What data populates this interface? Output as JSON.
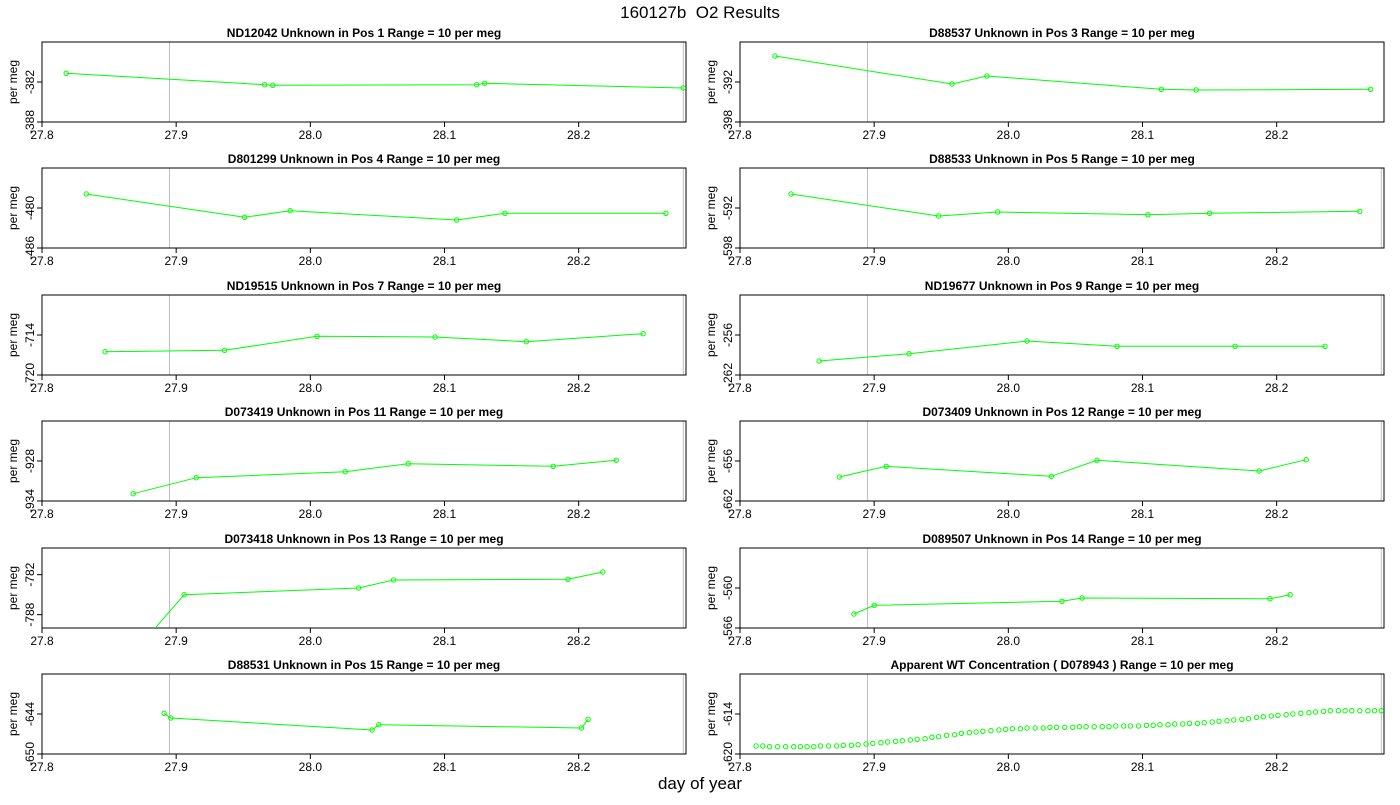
{
  "figure": {
    "title": "160127b  O2 Results",
    "xlabel": "day of year"
  },
  "colors": {
    "series": "#00ff00",
    "axis": "#000000",
    "refline": "#bebebe"
  },
  "chart_data": [
    {
      "type": "line",
      "title": "ND12042    Unknown in Pos 1         Range = 10 per meg",
      "ylabel": "per meg",
      "xlim": [
        27.8,
        28.28
      ],
      "xticks": [
        27.8,
        27.9,
        28.0,
        28.1,
        28.2
      ],
      "ylim": [
        -388,
        -376
      ],
      "yticks": [
        -382,
        -388
      ],
      "vlines": [
        27.895,
        28.278
      ],
      "x": [
        27.818,
        27.966,
        27.972,
        28.124,
        28.13,
        28.278
      ],
      "y": [
        -380.7,
        -382.4,
        -382.5,
        -382.4,
        -382.2,
        -382.9
      ]
    },
    {
      "type": "line",
      "title": "D88537    Unknown in Pos 3         Range = 10 per meg",
      "ylabel": "per meg",
      "xlim": [
        27.8,
        28.28
      ],
      "xticks": [
        27.8,
        27.9,
        28.0,
        28.1,
        28.2
      ],
      "ylim": [
        -398,
        -386
      ],
      "yticks": [
        -392,
        -398
      ],
      "vlines": [
        27.895
      ],
      "x": [
        27.826,
        27.958,
        27.984,
        28.114,
        28.14,
        28.27
      ],
      "y": [
        -388.1,
        -392.3,
        -391.1,
        -393.1,
        -393.2,
        -393.1
      ]
    },
    {
      "type": "line",
      "title": "D801299    Unknown in Pos 4         Range = 10 per meg",
      "ylabel": "per meg",
      "xlim": [
        27.8,
        28.28
      ],
      "xticks": [
        27.8,
        27.9,
        28.0,
        28.1,
        28.2
      ],
      "ylim": [
        -486,
        -474
      ],
      "yticks": [
        -480,
        -486
      ],
      "vlines": [
        27.895,
        28.278
      ],
      "x": [
        27.833,
        27.951,
        27.985,
        28.109,
        28.145,
        28.265
      ],
      "y": [
        -477.9,
        -481.4,
        -480.4,
        -481.8,
        -480.8,
        -480.8
      ]
    },
    {
      "type": "line",
      "title": "D88533    Unknown in Pos 5         Range = 10 per meg",
      "ylabel": "per meg",
      "xlim": [
        27.8,
        28.28
      ],
      "xticks": [
        27.8,
        27.9,
        28.0,
        28.1,
        28.2
      ],
      "ylim": [
        -598,
        -586
      ],
      "yticks": [
        -592,
        -598
      ],
      "vlines": [
        27.895,
        28.278
      ],
      "x": [
        27.838,
        27.948,
        27.992,
        28.104,
        28.15,
        28.262
      ],
      "y": [
        -589.9,
        -593.2,
        -592.6,
        -593.0,
        -592.8,
        -592.5
      ]
    },
    {
      "type": "line",
      "title": "ND19515    Unknown in Pos 7         Range = 10 per meg",
      "ylabel": "per meg",
      "xlim": [
        27.8,
        28.28
      ],
      "xticks": [
        27.8,
        27.9,
        28.0,
        28.1,
        28.2
      ],
      "ylim": [
        -720,
        -708
      ],
      "yticks": [
        -714,
        -720
      ],
      "vlines": [
        27.895,
        28.278
      ],
      "x": [
        27.847,
        27.936,
        28.005,
        28.093,
        28.161,
        28.248
      ],
      "y": [
        -716.5,
        -716.3,
        -714.2,
        -714.3,
        -715.0,
        -713.8
      ]
    },
    {
      "type": "line",
      "title": "ND19677    Unknown in Pos 9         Range = 10 per meg",
      "ylabel": "per meg",
      "xlim": [
        27.8,
        28.28
      ],
      "xticks": [
        27.8,
        27.9,
        28.0,
        28.1,
        28.2
      ],
      "ylim": [
        -262,
        -250
      ],
      "yticks": [
        -256,
        -262
      ],
      "vlines": [
        27.895,
        28.278
      ],
      "x": [
        27.859,
        27.926,
        28.014,
        28.081,
        28.169,
        28.236
      ],
      "y": [
        -259.9,
        -258.8,
        -256.9,
        -257.7,
        -257.7,
        -257.7
      ]
    },
    {
      "type": "line",
      "title": "D073419    Unknown in Pos 11         Range = 10 per meg",
      "ylabel": "per meg",
      "xlim": [
        27.8,
        28.28
      ],
      "xticks": [
        27.8,
        27.9,
        28.0,
        28.1,
        28.2
      ],
      "ylim": [
        -934,
        -922
      ],
      "yticks": [
        -928,
        -934
      ],
      "vlines": [
        27.895,
        28.278
      ],
      "x": [
        27.868,
        27.915,
        28.026,
        28.073,
        28.181,
        28.228
      ],
      "y": [
        -932.9,
        -930.5,
        -929.6,
        -928.4,
        -928.8,
        -927.9
      ]
    },
    {
      "type": "line",
      "title": "D073409    Unknown in Pos 12         Range = 10 per meg",
      "ylabel": "per meg",
      "xlim": [
        27.8,
        28.28
      ],
      "xticks": [
        27.8,
        27.9,
        28.0,
        28.1,
        28.2
      ],
      "ylim": [
        -662,
        -650
      ],
      "yticks": [
        -656,
        -662
      ],
      "vlines": [
        27.895,
        28.278
      ],
      "x": [
        27.874,
        27.909,
        28.032,
        28.066,
        28.187,
        28.222
      ],
      "y": [
        -658.4,
        -656.8,
        -658.3,
        -655.9,
        -657.5,
        -655.8
      ]
    },
    {
      "type": "line",
      "title": "D073418    Unknown in Pos 13         Range = 10 per meg",
      "ylabel": "per meg",
      "xlim": [
        27.8,
        28.28
      ],
      "xticks": [
        27.8,
        27.9,
        28.0,
        28.1,
        28.2
      ],
      "ylim": [
        -790,
        -778
      ],
      "yticks": [
        -782,
        -788
      ],
      "vlines": [
        27.895,
        28.278
      ],
      "x": [
        27.88,
        27.906,
        28.036,
        28.062,
        28.192,
        28.218
      ],
      "y": [
        -791.0,
        -785.0,
        -784.0,
        -782.8,
        -782.7,
        -781.6
      ]
    },
    {
      "type": "line",
      "title": "D089507    Unknown in Pos 14         Range = 10 per meg",
      "ylabel": "per meg",
      "xlim": [
        27.8,
        28.28
      ],
      "xticks": [
        27.8,
        27.9,
        28.0,
        28.1,
        28.2
      ],
      "ylim": [
        -566,
        -554
      ],
      "yticks": [
        -560,
        -566
      ],
      "vlines": [
        27.895,
        28.278
      ],
      "x": [
        27.885,
        27.9,
        28.04,
        28.055,
        28.195,
        28.21
      ],
      "y": [
        -563.9,
        -562.6,
        -562.0,
        -561.5,
        -561.6,
        -561.0
      ]
    },
    {
      "type": "line",
      "title": "D88531    Unknown in Pos 15         Range = 10 per meg",
      "ylabel": "per meg",
      "xlim": [
        27.8,
        28.28
      ],
      "xticks": [
        27.8,
        27.9,
        28.0,
        28.1,
        28.2
      ],
      "ylim": [
        -650,
        -638
      ],
      "yticks": [
        -644,
        -650
      ],
      "vlines": [
        27.895,
        28.278
      ],
      "x": [
        27.891,
        27.896,
        28.046,
        28.051,
        28.202,
        28.207
      ],
      "y": [
        -643.9,
        -644.6,
        -646.4,
        -645.6,
        -646.1,
        -644.8
      ]
    },
    {
      "type": "scatter",
      "title": "Apparent WT Concentration ( D078943 )         Range = 10 per meg",
      "ylabel": "per meg",
      "xlim": [
        27.8,
        28.28
      ],
      "xticks": [
        27.8,
        27.9,
        28.0,
        28.1,
        28.2
      ],
      "ylim": [
        -620,
        -608
      ],
      "yticks": [
        -614,
        -620
      ],
      "vlines": [
        27.895,
        28.278
      ],
      "x": [
        27.812,
        27.817,
        27.822,
        27.828,
        27.834,
        27.84,
        27.845,
        27.85,
        27.855,
        27.86,
        27.866,
        27.872,
        27.877,
        27.883,
        27.888,
        27.894,
        27.899,
        27.905,
        27.91,
        27.916,
        27.921,
        27.927,
        27.932,
        27.938,
        27.943,
        27.948,
        27.954,
        27.96,
        27.965,
        27.971,
        27.976,
        27.981,
        27.987,
        27.993,
        27.998,
        28.003,
        28.009,
        28.014,
        28.02,
        28.026,
        28.031,
        28.036,
        28.042,
        28.048,
        28.053,
        28.058,
        28.064,
        28.07,
        28.075,
        28.08,
        28.086,
        28.091,
        28.097,
        28.103,
        28.108,
        28.113,
        28.119,
        28.124,
        28.13,
        28.135,
        28.141,
        28.146,
        28.152,
        28.157,
        28.163,
        28.168,
        28.174,
        28.179,
        28.185,
        28.19,
        28.196,
        28.201,
        28.207,
        28.212,
        28.218,
        28.224,
        28.229,
        28.235,
        28.24,
        28.246,
        28.251,
        28.256,
        28.262,
        28.268,
        28.273,
        28.278
      ],
      "y": [
        -618.8,
        -618.8,
        -618.9,
        -618.9,
        -618.9,
        -618.9,
        -618.9,
        -618.9,
        -618.9,
        -618.8,
        -618.8,
        -618.8,
        -618.7,
        -618.7,
        -618.6,
        -618.5,
        -618.4,
        -618.3,
        -618.2,
        -618.1,
        -618.0,
        -617.9,
        -617.8,
        -617.7,
        -617.5,
        -617.4,
        -617.2,
        -617.1,
        -616.9,
        -616.8,
        -616.7,
        -616.6,
        -616.5,
        -616.4,
        -616.3,
        -616.2,
        -616.2,
        -616.1,
        -616.1,
        -616.1,
        -616.0,
        -616.0,
        -616.0,
        -616.0,
        -615.9,
        -615.9,
        -615.9,
        -615.9,
        -615.9,
        -615.8,
        -615.8,
        -615.8,
        -615.8,
        -615.7,
        -615.7,
        -615.6,
        -615.6,
        -615.5,
        -615.5,
        -615.4,
        -615.4,
        -615.3,
        -615.2,
        -615.1,
        -615.0,
        -614.9,
        -614.8,
        -614.7,
        -614.5,
        -614.4,
        -614.3,
        -614.2,
        -614.1,
        -614.0,
        -613.9,
        -613.8,
        -613.7,
        -613.6,
        -613.5,
        -613.5,
        -613.5,
        -613.5,
        -613.5,
        -613.5,
        -613.5,
        -613.5
      ]
    }
  ]
}
